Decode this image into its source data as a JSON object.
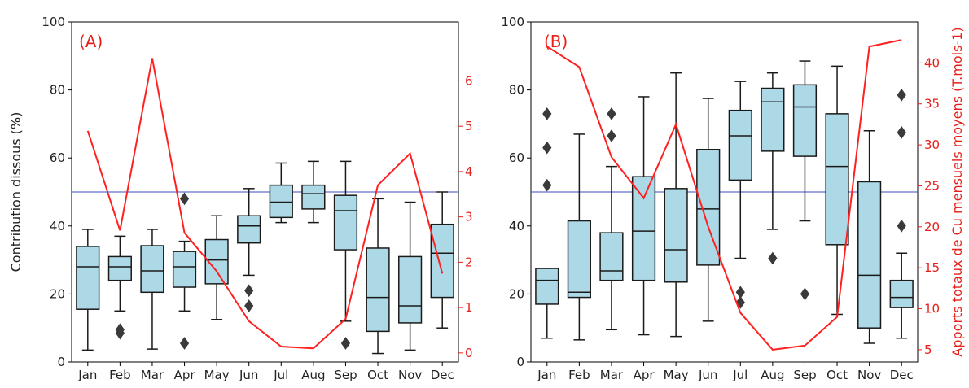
{
  "colors": {
    "box_fill": "#add8e6",
    "box_edge": "#1a1a1a",
    "line": "#ff2020",
    "reference_line": "#3b4cc0",
    "right_axis": "#e8201a",
    "panel_label": "#e8201a"
  },
  "chart_data": [
    {
      "type": "box",
      "panel_label": "(A)",
      "categories": [
        "Jan",
        "Feb",
        "Mar",
        "Apr",
        "May",
        "Jun",
        "Jul",
        "Aug",
        "Sep",
        "Oct",
        "Nov",
        "Dec"
      ],
      "ylabel": "Contribution dissous (%)",
      "ylim": [
        0,
        100
      ],
      "yticks": [
        0,
        20,
        40,
        60,
        80,
        100
      ],
      "reference_line_y": 50,
      "boxes": [
        {
          "whislo": 3.5,
          "q1": 15.5,
          "med": 28,
          "q3": 34,
          "whishi": 39,
          "fliers": []
        },
        {
          "whislo": 15,
          "q1": 24,
          "med": 28,
          "q3": 31,
          "whishi": 37,
          "fliers": [
            8.5,
            9.5
          ]
        },
        {
          "whislo": 3.8,
          "q1": 20.5,
          "med": 26.8,
          "q3": 34.2,
          "whishi": 39,
          "fliers": []
        },
        {
          "whislo": 15,
          "q1": 22,
          "med": 28,
          "q3": 32.5,
          "whishi": 35.5,
          "fliers": [
            48,
            5.5
          ]
        },
        {
          "whislo": 12.5,
          "q1": 23,
          "med": 30,
          "q3": 36,
          "whishi": 43,
          "fliers": []
        },
        {
          "whislo": 25.5,
          "q1": 35,
          "med": 40,
          "q3": 43,
          "whishi": 51,
          "fliers": [
            21,
            16.5
          ]
        },
        {
          "whislo": 41,
          "q1": 42.5,
          "med": 47,
          "q3": 52,
          "whishi": 58.5,
          "fliers": []
        },
        {
          "whislo": 41,
          "q1": 45,
          "med": 49.5,
          "q3": 52,
          "whishi": 59,
          "fliers": []
        },
        {
          "whislo": 12,
          "q1": 33,
          "med": 44.5,
          "q3": 49,
          "whishi": 59,
          "fliers": [
            5.5
          ]
        },
        {
          "whislo": 2.5,
          "q1": 9,
          "med": 19,
          "q3": 33.5,
          "whishi": 48,
          "fliers": []
        },
        {
          "whislo": 3.5,
          "q1": 11.5,
          "med": 16.5,
          "q3": 31,
          "whishi": 47,
          "fliers": []
        },
        {
          "whislo": 10,
          "q1": 19,
          "med": 32,
          "q3": 40.5,
          "whishi": 50,
          "fliers": []
        }
      ],
      "line_series": {
        "values": [
          4.9,
          2.7,
          6.5,
          2.65,
          1.8,
          0.7,
          0.14,
          0.1,
          0.75,
          3.7,
          4.4,
          1.75
        ]
      },
      "y2lim": [
        -0.2,
        7.3
      ],
      "y2ticks": [
        0,
        1,
        2,
        3,
        4,
        5,
        6
      ],
      "y2label": ""
    },
    {
      "type": "box",
      "panel_label": "(B)",
      "categories": [
        "Jan",
        "Feb",
        "Mar",
        "Apr",
        "May",
        "Jun",
        "Jul",
        "Aug",
        "Sep",
        "Oct",
        "Nov",
        "Dec"
      ],
      "ylabel": "",
      "ylim": [
        0,
        100
      ],
      "yticks": [
        0,
        20,
        40,
        60,
        80,
        100
      ],
      "reference_line_y": 50,
      "boxes": [
        {
          "whislo": 7,
          "q1": 17,
          "med": 24,
          "q3": 27.5,
          "whishi": 27.5,
          "fliers": [
            73,
            63,
            52
          ]
        },
        {
          "whislo": 6.5,
          "q1": 19,
          "med": 20.5,
          "q3": 41.5,
          "whishi": 67,
          "fliers": []
        },
        {
          "whislo": 9.5,
          "q1": 24,
          "med": 26.8,
          "q3": 38,
          "whishi": 57.5,
          "fliers": [
            73,
            66.5
          ]
        },
        {
          "whislo": 8,
          "q1": 24,
          "med": 38.5,
          "q3": 54.5,
          "whishi": 78,
          "fliers": []
        },
        {
          "whislo": 7.5,
          "q1": 23.5,
          "med": 33,
          "q3": 51,
          "whishi": 85,
          "fliers": []
        },
        {
          "whislo": 12,
          "q1": 28.5,
          "med": 45,
          "q3": 62.5,
          "whishi": 77.5,
          "fliers": []
        },
        {
          "whislo": 30.5,
          "q1": 53.5,
          "med": 66.5,
          "q3": 74,
          "whishi": 82.5,
          "fliers": [
            20.5,
            17.5
          ]
        },
        {
          "whislo": 39,
          "q1": 62,
          "med": 76.5,
          "q3": 80.5,
          "whishi": 85,
          "fliers": [
            30.5
          ]
        },
        {
          "whislo": 41.5,
          "q1": 60.5,
          "med": 75,
          "q3": 81.5,
          "whishi": 88.5,
          "fliers": [
            20
          ]
        },
        {
          "whislo": 14,
          "q1": 34.5,
          "med": 57.5,
          "q3": 73,
          "whishi": 87,
          "fliers": []
        },
        {
          "whislo": 5.5,
          "q1": 10,
          "med": 25.5,
          "q3": 53,
          "whishi": 68,
          "fliers": []
        },
        {
          "whislo": 7,
          "q1": 16,
          "med": 19,
          "q3": 24,
          "whishi": 32,
          "fliers": [
            78.5,
            67.5,
            40
          ]
        }
      ],
      "line_series": {
        "values": [
          42,
          39.5,
          28.5,
          23.5,
          32.5,
          20,
          9.5,
          5,
          5.5,
          9,
          42,
          42.8
        ]
      },
      "y2lim": [
        3.5,
        45
      ],
      "y2ticks": [
        5,
        10,
        15,
        20,
        25,
        30,
        35,
        40
      ],
      "y2label": "Apports totaux de Cu mensuels moyens (T.mois-1)"
    }
  ]
}
